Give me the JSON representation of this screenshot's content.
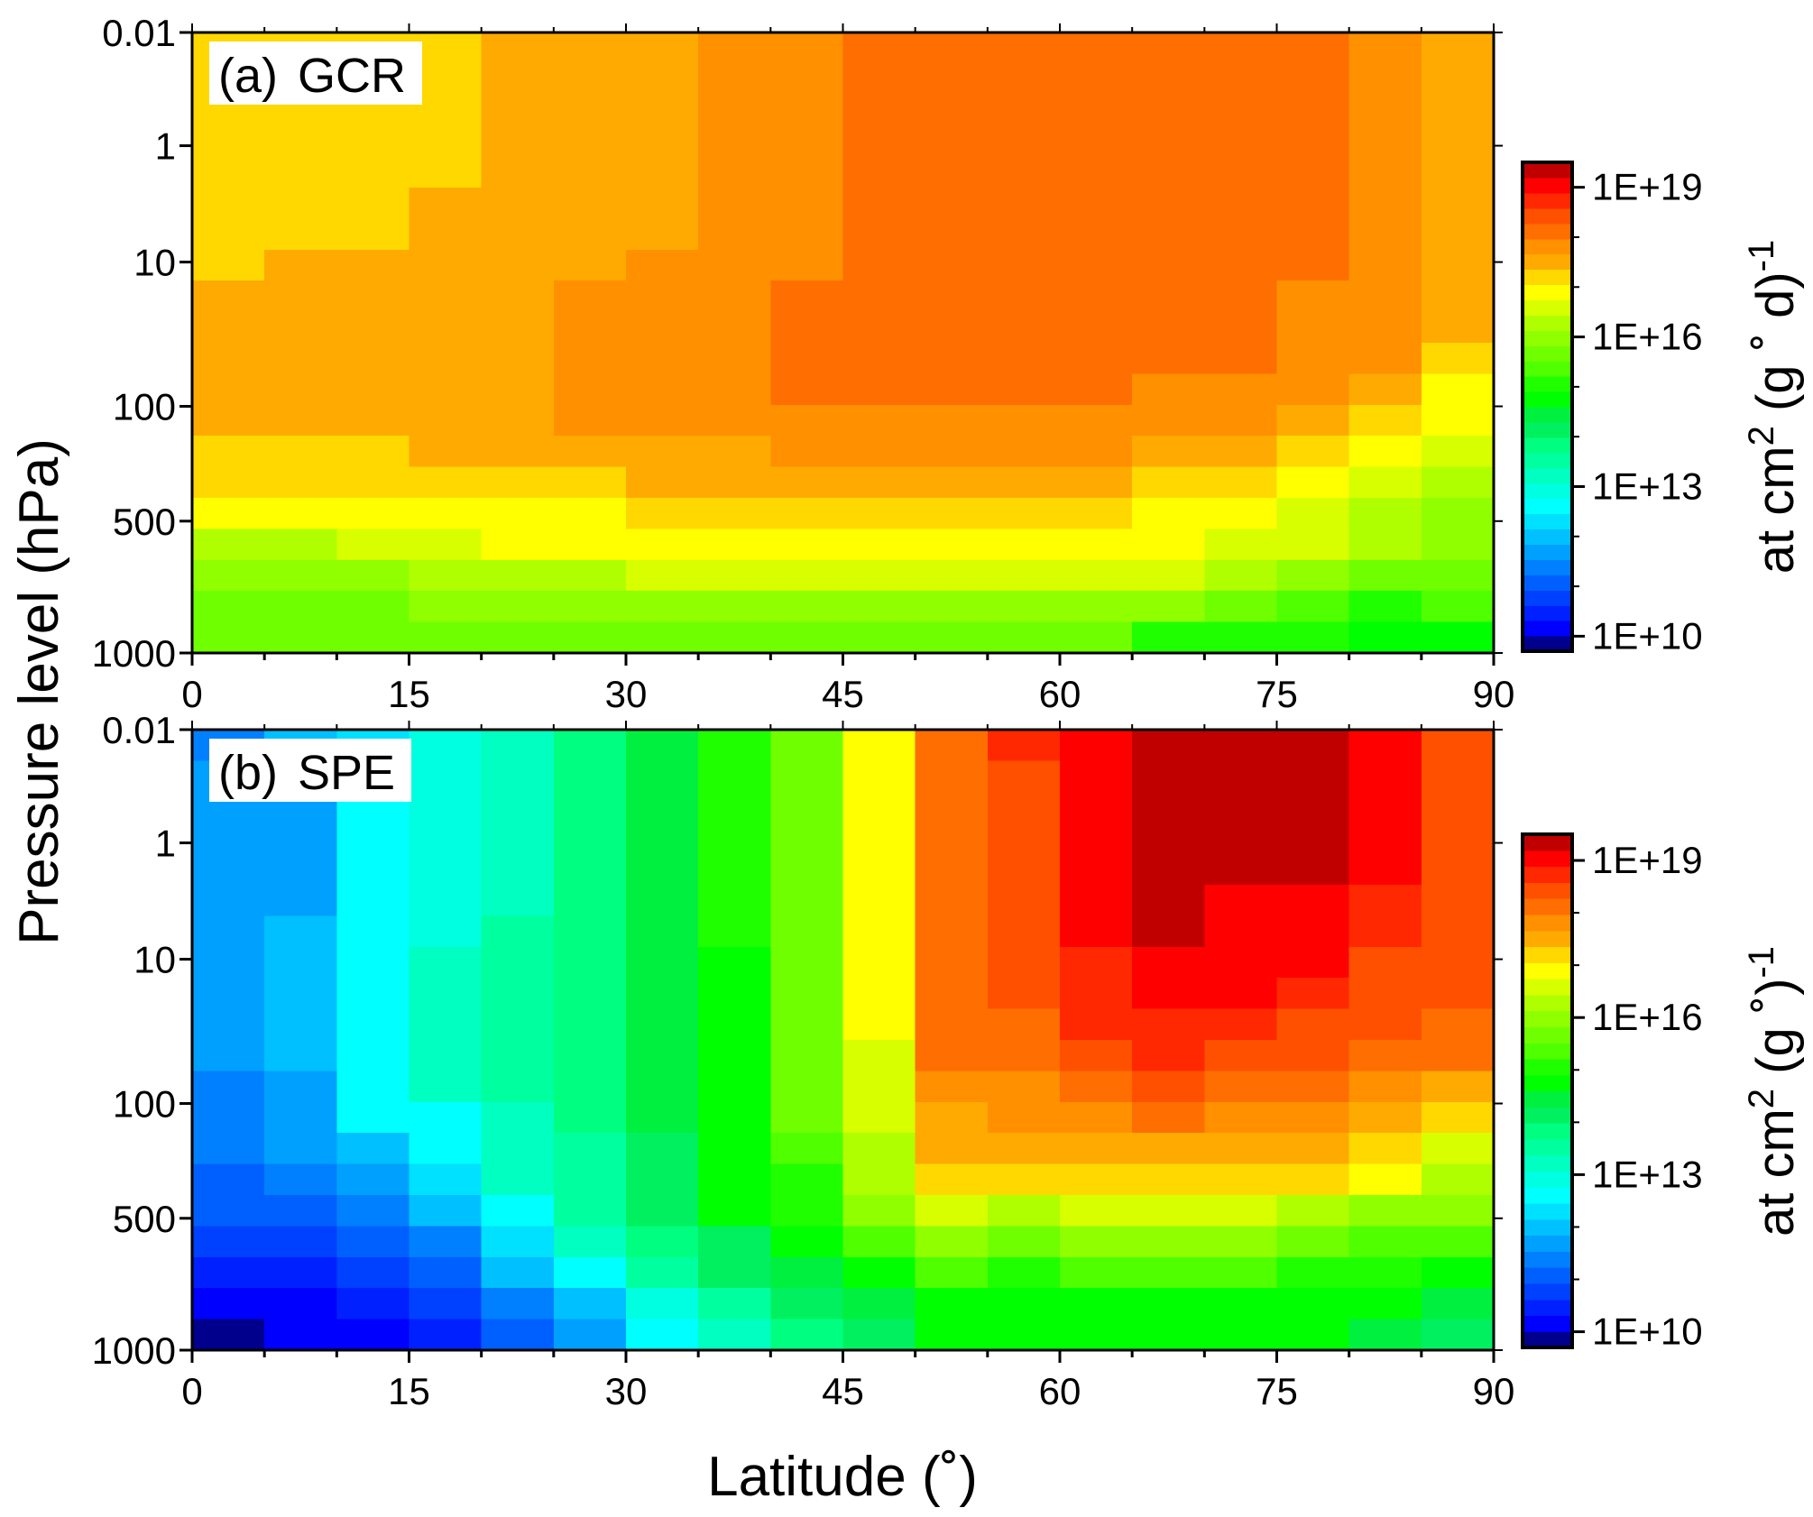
{
  "chart_data": {
    "type": "heatmap",
    "xlabel": "Latitude (˚)",
    "ylabel": "Pressure level (hPa)",
    "x_ticks": [
      "0",
      "15",
      "30",
      "45",
      "60",
      "75",
      "90"
    ],
    "x_tick_values": [
      0,
      15,
      30,
      45,
      60,
      75,
      90
    ],
    "xlim": [
      0,
      90
    ],
    "lat_bin_width_deg": 5,
    "model_level_count": 40,
    "y_ticks": [
      "0.01",
      "1",
      "10",
      "100",
      "500",
      "1000"
    ],
    "y_tick_model_levels": [
      0,
      7.3,
      14.8,
      24.1,
      31.5,
      40
    ],
    "value_units": "log10",
    "colorbar": {
      "range_log10": [
        9.7,
        19.5
      ],
      "tick_labels": [
        "1E+19",
        "1E+16",
        "1E+13",
        "1E+10"
      ],
      "tick_log10": [
        19,
        16,
        13,
        10
      ],
      "minor_tick_log10": [
        18,
        17,
        15,
        14,
        12,
        11
      ],
      "colors": [
        "#00008c",
        "#0000ff",
        "#0020ff",
        "#0040ff",
        "#0060ff",
        "#0080ff",
        "#00a0ff",
        "#00c0ff",
        "#00e0ff",
        "#00ffff",
        "#00ffe0",
        "#00ffc0",
        "#00ff9f",
        "#00ff80",
        "#00f060",
        "#00f040",
        "#00ff00",
        "#20ff00",
        "#50ff00",
        "#70ff00",
        "#90ff00",
        "#b0ff00",
        "#d8ff00",
        "#ffff00",
        "#ffd800",
        "#ffaa00",
        "#ff9000",
        "#ff6e00",
        "#ff5000",
        "#ff2800",
        "#ff0000",
        "#c00000"
      ]
    },
    "panels": [
      {
        "id": "a",
        "tag": "(a)",
        "name": "GCR",
        "cb_title": {
          "main": "at cm",
          "sup": "2",
          "rest": " (g ˚ d)",
          "sup2": "-1"
        },
        "values_by_lat_bin_top_to_bottom": [
          [
            17.2,
            17.2,
            17.2,
            17.2,
            17.2,
            17.2,
            17.2,
            17.2,
            17.5,
            17.5,
            17.5,
            17.5,
            17.5,
            17.2,
            17.2,
            16.9,
            16.3,
            16.0,
            15.8,
            15.6
          ],
          [
            17.2,
            17.2,
            17.2,
            17.2,
            17.2,
            17.2,
            17.2,
            17.5,
            17.5,
            17.5,
            17.5,
            17.5,
            17.5,
            17.2,
            17.2,
            16.9,
            16.3,
            16.0,
            15.8,
            15.6
          ],
          [
            17.2,
            17.2,
            17.2,
            17.2,
            17.2,
            17.2,
            17.2,
            17.5,
            17.5,
            17.5,
            17.5,
            17.5,
            17.5,
            17.2,
            17.2,
            16.9,
            16.6,
            16.0,
            15.8,
            15.6
          ],
          [
            17.2,
            17.2,
            17.2,
            17.2,
            17.2,
            17.5,
            17.5,
            17.5,
            17.5,
            17.5,
            17.5,
            17.5,
            17.5,
            17.5,
            17.2,
            16.9,
            16.6,
            16.3,
            16.0,
            15.6
          ],
          [
            17.5,
            17.5,
            17.5,
            17.5,
            17.5,
            17.5,
            17.5,
            17.5,
            17.5,
            17.5,
            17.5,
            17.5,
            17.5,
            17.5,
            17.2,
            16.9,
            16.9,
            16.3,
            16.0,
            15.6
          ],
          [
            17.5,
            17.5,
            17.5,
            17.5,
            17.5,
            17.5,
            17.5,
            17.5,
            17.8,
            17.8,
            17.8,
            17.8,
            17.8,
            17.5,
            17.2,
            16.9,
            16.9,
            16.3,
            16.0,
            15.6
          ],
          [
            17.5,
            17.5,
            17.5,
            17.5,
            17.5,
            17.5,
            17.5,
            17.8,
            17.8,
            17.8,
            17.8,
            17.8,
            17.8,
            17.5,
            17.5,
            17.2,
            16.9,
            16.6,
            16.0,
            15.6
          ],
          [
            17.8,
            17.8,
            17.8,
            17.8,
            17.8,
            17.8,
            17.8,
            17.8,
            17.8,
            17.8,
            17.8,
            17.8,
            17.8,
            17.5,
            17.5,
            17.2,
            16.9,
            16.6,
            16.0,
            15.6
          ],
          [
            17.8,
            17.8,
            17.8,
            17.8,
            17.8,
            17.8,
            17.8,
            17.8,
            18.1,
            18.1,
            18.1,
            18.1,
            17.8,
            17.8,
            17.5,
            17.2,
            16.9,
            16.6,
            16.0,
            15.6
          ],
          [
            18.1,
            18.1,
            18.1,
            18.1,
            18.1,
            18.1,
            18.1,
            18.1,
            18.1,
            18.1,
            18.1,
            18.1,
            17.8,
            17.8,
            17.5,
            17.2,
            16.9,
            16.6,
            16.0,
            15.6
          ],
          [
            18.1,
            18.1,
            18.1,
            18.1,
            18.1,
            18.1,
            18.1,
            18.1,
            18.1,
            18.1,
            18.1,
            18.1,
            17.8,
            17.8,
            17.5,
            17.2,
            16.9,
            16.6,
            16.0,
            15.6
          ],
          [
            18.1,
            18.1,
            18.1,
            18.1,
            18.1,
            18.1,
            18.1,
            18.1,
            18.1,
            18.1,
            18.1,
            18.1,
            17.8,
            17.8,
            17.5,
            17.2,
            16.9,
            16.6,
            16.0,
            15.6
          ],
          [
            18.1,
            18.1,
            18.1,
            18.1,
            18.1,
            18.1,
            18.1,
            18.1,
            18.1,
            18.1,
            18.1,
            18.1,
            17.8,
            17.8,
            17.5,
            17.2,
            16.9,
            16.6,
            16.0,
            15.6
          ],
          [
            18.1,
            18.1,
            18.1,
            18.1,
            18.1,
            18.1,
            18.1,
            18.1,
            18.1,
            18.1,
            18.1,
            17.8,
            17.8,
            17.5,
            17.2,
            16.9,
            16.9,
            16.6,
            16.0,
            15.2
          ],
          [
            18.1,
            18.1,
            18.1,
            18.1,
            18.1,
            18.1,
            18.1,
            18.1,
            18.1,
            18.1,
            18.1,
            17.8,
            17.8,
            17.5,
            17.2,
            16.9,
            16.6,
            16.3,
            15.8,
            15.2
          ],
          [
            18.1,
            18.1,
            18.1,
            18.1,
            18.1,
            18.1,
            18.1,
            18.1,
            17.8,
            17.8,
            17.8,
            17.8,
            17.5,
            17.2,
            16.9,
            16.6,
            16.6,
            16.0,
            15.5,
            15.2
          ],
          [
            17.8,
            17.8,
            17.8,
            17.8,
            17.8,
            17.8,
            17.8,
            17.8,
            17.8,
            17.8,
            17.8,
            17.5,
            17.2,
            16.9,
            16.6,
            16.3,
            16.3,
            15.7,
            15.2,
            14.8
          ],
          [
            17.4,
            17.4,
            17.4,
            17.4,
            17.4,
            17.4,
            17.4,
            17.4,
            17.4,
            17.4,
            17.2,
            16.9,
            16.9,
            16.6,
            16.3,
            16.0,
            15.9,
            15.6,
            15.3,
            14.9
          ]
        ]
      },
      {
        "id": "b",
        "tag": "(b)",
        "name": "SPE",
        "cb_title": {
          "main": "at cm",
          "sup": "2",
          "rest": " (g ˚)",
          "sup2": "-1"
        },
        "values_by_lat_bin_top_to_bottom": [
          [
            11.3,
            11.8,
            11.8,
            11.8,
            11.8,
            11.8,
            11.8,
            11.8,
            11.8,
            11.8,
            11.8,
            11.5,
            11.5,
            11.5,
            11.2,
            11.2,
            10.9,
            10.6,
            10.3,
            9.85
          ],
          [
            12.1,
            12.1,
            11.8,
            11.8,
            11.8,
            11.8,
            12.1,
            12.1,
            12.1,
            12.1,
            12.1,
            11.8,
            11.8,
            11.8,
            11.5,
            11.2,
            10.9,
            10.6,
            10.3,
            10.3
          ],
          [
            12.4,
            12.4,
            12.6,
            12.6,
            12.6,
            12.6,
            12.6,
            12.6,
            12.6,
            12.6,
            12.6,
            12.6,
            12.6,
            12.1,
            11.8,
            11.5,
            11.2,
            10.9,
            10.6,
            10.3
          ],
          [
            12.8,
            12.8,
            12.9,
            12.9,
            12.9,
            12.9,
            12.9,
            13.1,
            13.1,
            13.1,
            13.1,
            13.1,
            12.6,
            12.6,
            12.4,
            12.1,
            11.5,
            11.2,
            10.9,
            10.6
          ],
          [
            13.3,
            13.3,
            13.3,
            13.3,
            13.3,
            13.3,
            13.5,
            13.5,
            13.5,
            13.5,
            13.5,
            13.5,
            13.2,
            13.2,
            13.2,
            12.6,
            12.4,
            12.1,
            11.5,
            11.2
          ],
          [
            13.7,
            13.7,
            13.7,
            13.7,
            13.7,
            13.7,
            13.9,
            13.9,
            13.9,
            13.9,
            13.9,
            13.9,
            13.9,
            13.5,
            13.5,
            13.5,
            13.2,
            12.6,
            12.1,
            11.8
          ],
          [
            14.4,
            14.4,
            14.4,
            14.4,
            14.4,
            14.4,
            14.4,
            14.4,
            14.4,
            14.4,
            14.4,
            14.4,
            14.4,
            14.0,
            14.0,
            14.0,
            13.8,
            13.5,
            12.9,
            12.6
          ],
          [
            15.0,
            15.0,
            15.0,
            15.0,
            15.0,
            15.0,
            15.0,
            14.7,
            14.7,
            14.7,
            14.7,
            14.7,
            14.7,
            14.6,
            14.6,
            14.6,
            14.2,
            14.0,
            13.5,
            13.2
          ],
          [
            15.7,
            15.7,
            15.7,
            15.7,
            15.7,
            15.7,
            15.7,
            15.7,
            15.7,
            15.6,
            15.6,
            15.6,
            15.6,
            15.4,
            15.0,
            15.0,
            14.7,
            14.4,
            14.0,
            13.8
          ],
          [
            17.0,
            17.0,
            17.0,
            17.0,
            17.0,
            17.0,
            17.0,
            17.0,
            17.0,
            17.0,
            16.7,
            16.7,
            16.7,
            16.3,
            16.3,
            15.9,
            15.3,
            14.7,
            14.4,
            14.2
          ],
          [
            18.1,
            18.1,
            18.1,
            18.1,
            18.1,
            18.1,
            18.1,
            18.1,
            18.1,
            18.1,
            18.1,
            17.8,
            17.5,
            17.5,
            17.2,
            16.6,
            15.9,
            15.3,
            14.7,
            14.6
          ],
          [
            18.7,
            18.4,
            18.4,
            18.4,
            18.4,
            18.4,
            18.4,
            18.4,
            18.4,
            18.1,
            18.1,
            17.8,
            17.8,
            17.5,
            17.2,
            16.3,
            15.6,
            15.0,
            14.7,
            14.7
          ],
          [
            19.0,
            19.0,
            19.0,
            19.0,
            19.0,
            19.0,
            19.0,
            18.7,
            18.7,
            18.7,
            18.4,
            18.1,
            17.8,
            17.5,
            17.2,
            16.6,
            15.9,
            15.3,
            14.9,
            14.7
          ],
          [
            19.3,
            19.3,
            19.3,
            19.3,
            19.3,
            19.3,
            19.3,
            19.0,
            19.0,
            18.7,
            18.7,
            18.4,
            18.1,
            17.5,
            17.2,
            16.6,
            15.9,
            15.3,
            14.9,
            14.7
          ],
          [
            19.3,
            19.3,
            19.3,
            19.3,
            19.3,
            19.0,
            19.0,
            19.0,
            19.0,
            18.7,
            18.4,
            18.1,
            17.8,
            17.5,
            17.2,
            16.6,
            15.9,
            15.3,
            14.9,
            14.7
          ],
          [
            19.3,
            19.3,
            19.3,
            19.3,
            19.3,
            19.0,
            19.0,
            19.0,
            18.7,
            18.4,
            18.4,
            18.1,
            17.8,
            17.5,
            17.2,
            16.3,
            15.6,
            15.0,
            14.7,
            14.6
          ],
          [
            19.0,
            19.0,
            19.0,
            19.0,
            19.0,
            18.7,
            18.7,
            18.4,
            18.4,
            18.4,
            18.1,
            17.8,
            17.5,
            17.2,
            16.9,
            16.0,
            15.5,
            15.0,
            14.6,
            14.4
          ],
          [
            18.4,
            18.4,
            18.4,
            18.4,
            18.4,
            18.4,
            18.4,
            18.4,
            18.4,
            18.1,
            18.1,
            17.5,
            17.2,
            16.6,
            16.3,
            15.9,
            15.3,
            14.7,
            14.4,
            14.1
          ]
        ]
      }
    ]
  }
}
